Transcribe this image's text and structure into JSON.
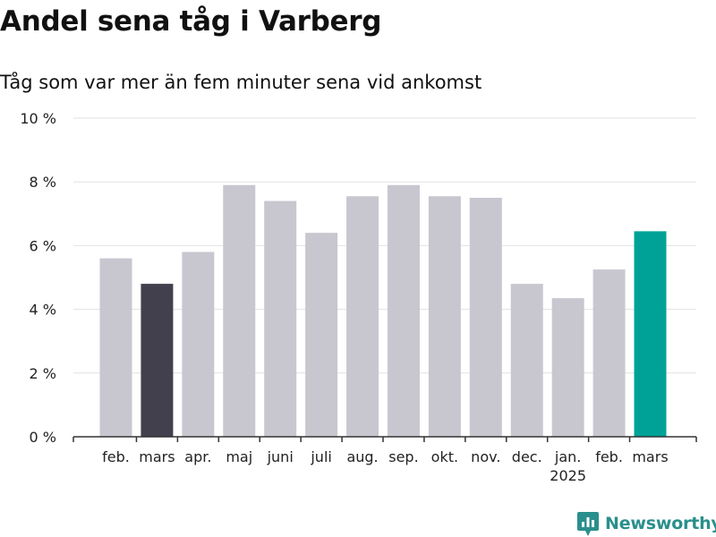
{
  "header": {
    "title": "Andel sena tåg i Varberg",
    "subtitle": "Tåg som var mer än fem minuter sena vid ankomst"
  },
  "brand": {
    "name": "Newsworthy",
    "icon": "newsworthy-logo-icon",
    "color": "#2a8f8c"
  },
  "colors": {
    "bar": "#c8c7d0",
    "highlight_prev_year": "#42404d",
    "highlight_current": "#00a298",
    "grid": "#e2e2e2",
    "axis": "#333333"
  },
  "chart_data": {
    "type": "bar",
    "categories": [
      "feb.",
      "mars",
      "apr.",
      "maj",
      "juni",
      "juli",
      "aug.",
      "sep.",
      "okt.",
      "nov.",
      "dec.",
      "jan.",
      "feb.",
      "mars"
    ],
    "year_labels": [
      {
        "index": 11,
        "label": "2025"
      }
    ],
    "values": [
      5.6,
      4.8,
      5.8,
      7.9,
      7.4,
      6.4,
      7.55,
      7.9,
      7.55,
      7.5,
      4.8,
      4.35,
      5.25,
      6.45
    ],
    "bar_colors": [
      "#c8c7d0",
      "#42404d",
      "#c8c7d0",
      "#c8c7d0",
      "#c8c7d0",
      "#c8c7d0",
      "#c8c7d0",
      "#c8c7d0",
      "#c8c7d0",
      "#c8c7d0",
      "#c8c7d0",
      "#c8c7d0",
      "#c8c7d0",
      "#00a298"
    ],
    "yticks": [
      {
        "value": 0,
        "label": "0 %"
      },
      {
        "value": 2,
        "label": "2 %"
      },
      {
        "value": 4,
        "label": "4 %"
      },
      {
        "value": 6,
        "label": "6 %"
      },
      {
        "value": 8,
        "label": "8 %"
      },
      {
        "value": 10,
        "label": "10 %"
      }
    ],
    "ylim": [
      0,
      10
    ],
    "grid": true,
    "legend": "none"
  }
}
